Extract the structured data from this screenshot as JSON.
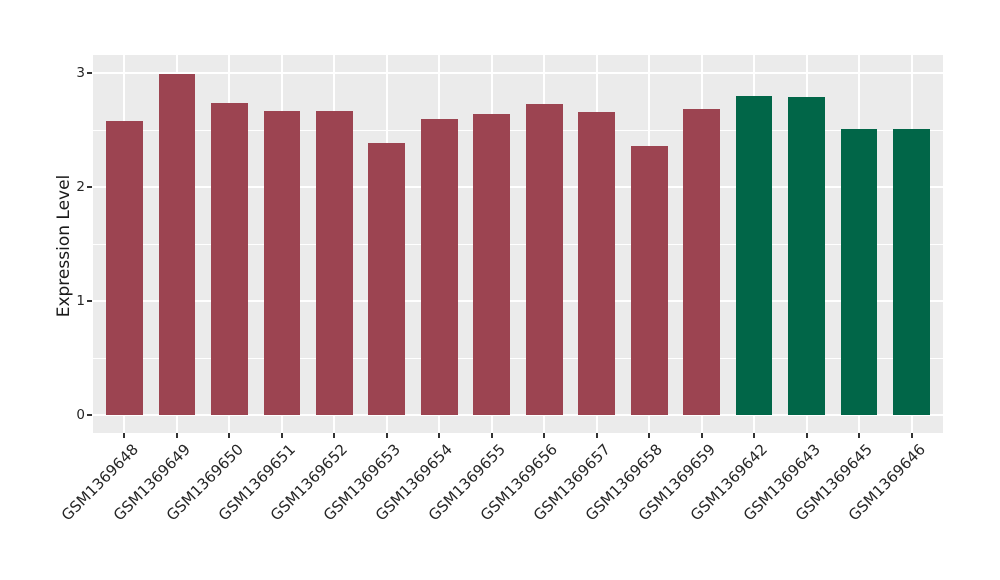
{
  "figure": {
    "background": "#FFFFFF",
    "panel_background": "#EBEBEB",
    "gridline_color": "#FFFFFF",
    "tick_mark_color": "#333333",
    "tick_label_color": "#262626",
    "axis_title_color": "#1A1A1A"
  },
  "chart_data": {
    "type": "bar",
    "title": "",
    "xlabel": "",
    "ylabel": "Expression Level",
    "ylim": [
      0,
      3.15
    ],
    "y_ticks": [
      0,
      1,
      2,
      3
    ],
    "y_minor_ticks": [
      0.5,
      1.5,
      2.5
    ],
    "grid": "major and minor, white on gray panel",
    "legend_position": "none",
    "categories": [
      "GSM1369648",
      "GSM1369649",
      "GSM1369650",
      "GSM1369651",
      "GSM1369652",
      "GSM1369653",
      "GSM1369654",
      "GSM1369655",
      "GSM1369656",
      "GSM1369657",
      "GSM1369658",
      "GSM1369659",
      "GSM1369642",
      "GSM1369643",
      "GSM1369645",
      "GSM1369646"
    ],
    "values": [
      2.58,
      2.99,
      2.74,
      2.67,
      2.67,
      2.39,
      2.6,
      2.64,
      2.73,
      2.66,
      2.36,
      2.68,
      2.8,
      2.79,
      2.51,
      2.51
    ],
    "bar_colors": [
      "#9C4451",
      "#9C4451",
      "#9C4451",
      "#9C4451",
      "#9C4451",
      "#9C4451",
      "#9C4451",
      "#9C4451",
      "#9C4451",
      "#9C4451",
      "#9C4451",
      "#9C4451",
      "#016648",
      "#016648",
      "#016648",
      "#016648"
    ],
    "group_colors": {
      "red_group": "#9C4451",
      "green_group": "#016648"
    }
  }
}
